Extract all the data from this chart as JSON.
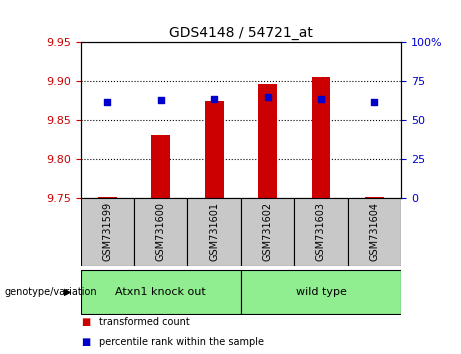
{
  "title": "GDS4148 / 54721_at",
  "samples": [
    "GSM731599",
    "GSM731600",
    "GSM731601",
    "GSM731602",
    "GSM731603",
    "GSM731604"
  ],
  "transformed_count": [
    9.752,
    9.831,
    9.875,
    9.897,
    9.906,
    9.752
  ],
  "percentile_rank": [
    62,
    63,
    64,
    65,
    64,
    62
  ],
  "ylim_left": [
    9.75,
    9.95
  ],
  "ylim_right": [
    0,
    100
  ],
  "yticks_left": [
    9.75,
    9.8,
    9.85,
    9.9,
    9.95
  ],
  "yticks_right": [
    0,
    25,
    50,
    75,
    100
  ],
  "ytick_labels_right": [
    "0",
    "25",
    "50",
    "75",
    "100%"
  ],
  "bar_color": "#CC0000",
  "dot_color": "#0000CC",
  "bar_bottom": 9.75,
  "bar_width": 0.35,
  "dot_size": 25,
  "tick_label_color_left": "#CC0000",
  "tick_label_color_right": "#0000CC",
  "group_label": "genotype/variation",
  "group1_label": "Atxn1 knock out",
  "group2_label": "wild type",
  "group_color": "#90EE90",
  "sample_bg_color": "#C8C8C8",
  "legend_red_label": "transformed count",
  "legend_blue_label": "percentile rank within the sample"
}
